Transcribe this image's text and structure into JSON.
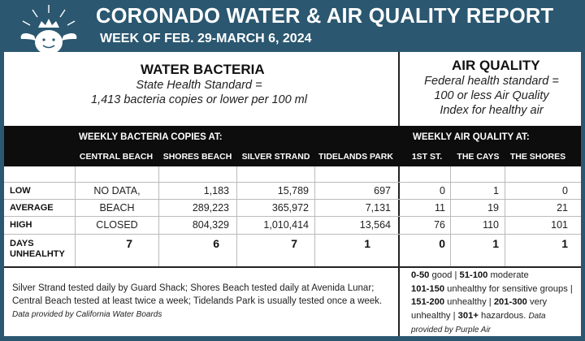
{
  "header": {
    "title": "CORONADO WATER & AIR QUALITY REPORT",
    "subtitle": "WEEK OF FEB. 29-MARCH 6, 2024"
  },
  "water": {
    "title": "WATER BACTERIA",
    "standard_line1": "State Health Standard  =",
    "standard_line2": "1,413 bacteria copies or lower per 100 ml",
    "band_label": "WEEKLY BACTERIA COPIES AT:",
    "columns": [
      "CENTRAL BEACH",
      "SHORES BEACH",
      "SILVER STRAND",
      "TIDELANDS PARK"
    ],
    "rows": {
      "low": [
        "NO DATA,",
        "1,183",
        "15,789",
        "697"
      ],
      "average": [
        "BEACH",
        "289,223",
        "365,972",
        "7,131"
      ],
      "high": [
        "CLOSED",
        "804,329",
        "1,010,414",
        "13,564"
      ],
      "days": [
        "7",
        "6",
        "7",
        "1"
      ]
    },
    "notes": "Silver Strand tested daily by Guard Shack; Shores Beach tested daily at Avenida Lunar; Central Beach tested at least twice a week; Tidelands Park is usually tested once a week.",
    "credit": "Data provided by California Water Boards"
  },
  "air": {
    "title": "AIR QUALITY",
    "standard_line1": "Federal health standard =",
    "standard_line2": "100 or less Air Quality",
    "standard_line3": "Index for healthy air",
    "band_label": "WEEKLY AIR QUALITY AT:",
    "columns": [
      "1ST ST.",
      "THE CAYS",
      "THE SHORES"
    ],
    "rows": {
      "low": [
        "0",
        "1",
        "0"
      ],
      "average": [
        "11",
        "19",
        "21"
      ],
      "high": [
        "76",
        "110",
        "101"
      ],
      "days": [
        "0",
        "1",
        "1"
      ]
    },
    "legend": [
      {
        "range": "0-50",
        "label": "good"
      },
      {
        "range": "51-100",
        "label": "moderate"
      },
      {
        "range": "101-150",
        "label": "unhealthy for sensitive groups"
      },
      {
        "range": "151-200",
        "label": "unhealthy"
      },
      {
        "range": "201-300",
        "label": "very unhealthy"
      },
      {
        "range": "301+",
        "label": "hazardous."
      }
    ],
    "credit": "Data provided by Purple Air"
  },
  "row_labels": {
    "low": "LOW",
    "average": "AVERAGE",
    "high": "HIGH",
    "days_line1": "DAYS",
    "days_line2": "UNHEALHTY"
  },
  "colors": {
    "header_bg": "#2b5770",
    "band_bg": "#0d0d0d"
  },
  "icons": {
    "logo": "turtle-with-crown-logo"
  }
}
